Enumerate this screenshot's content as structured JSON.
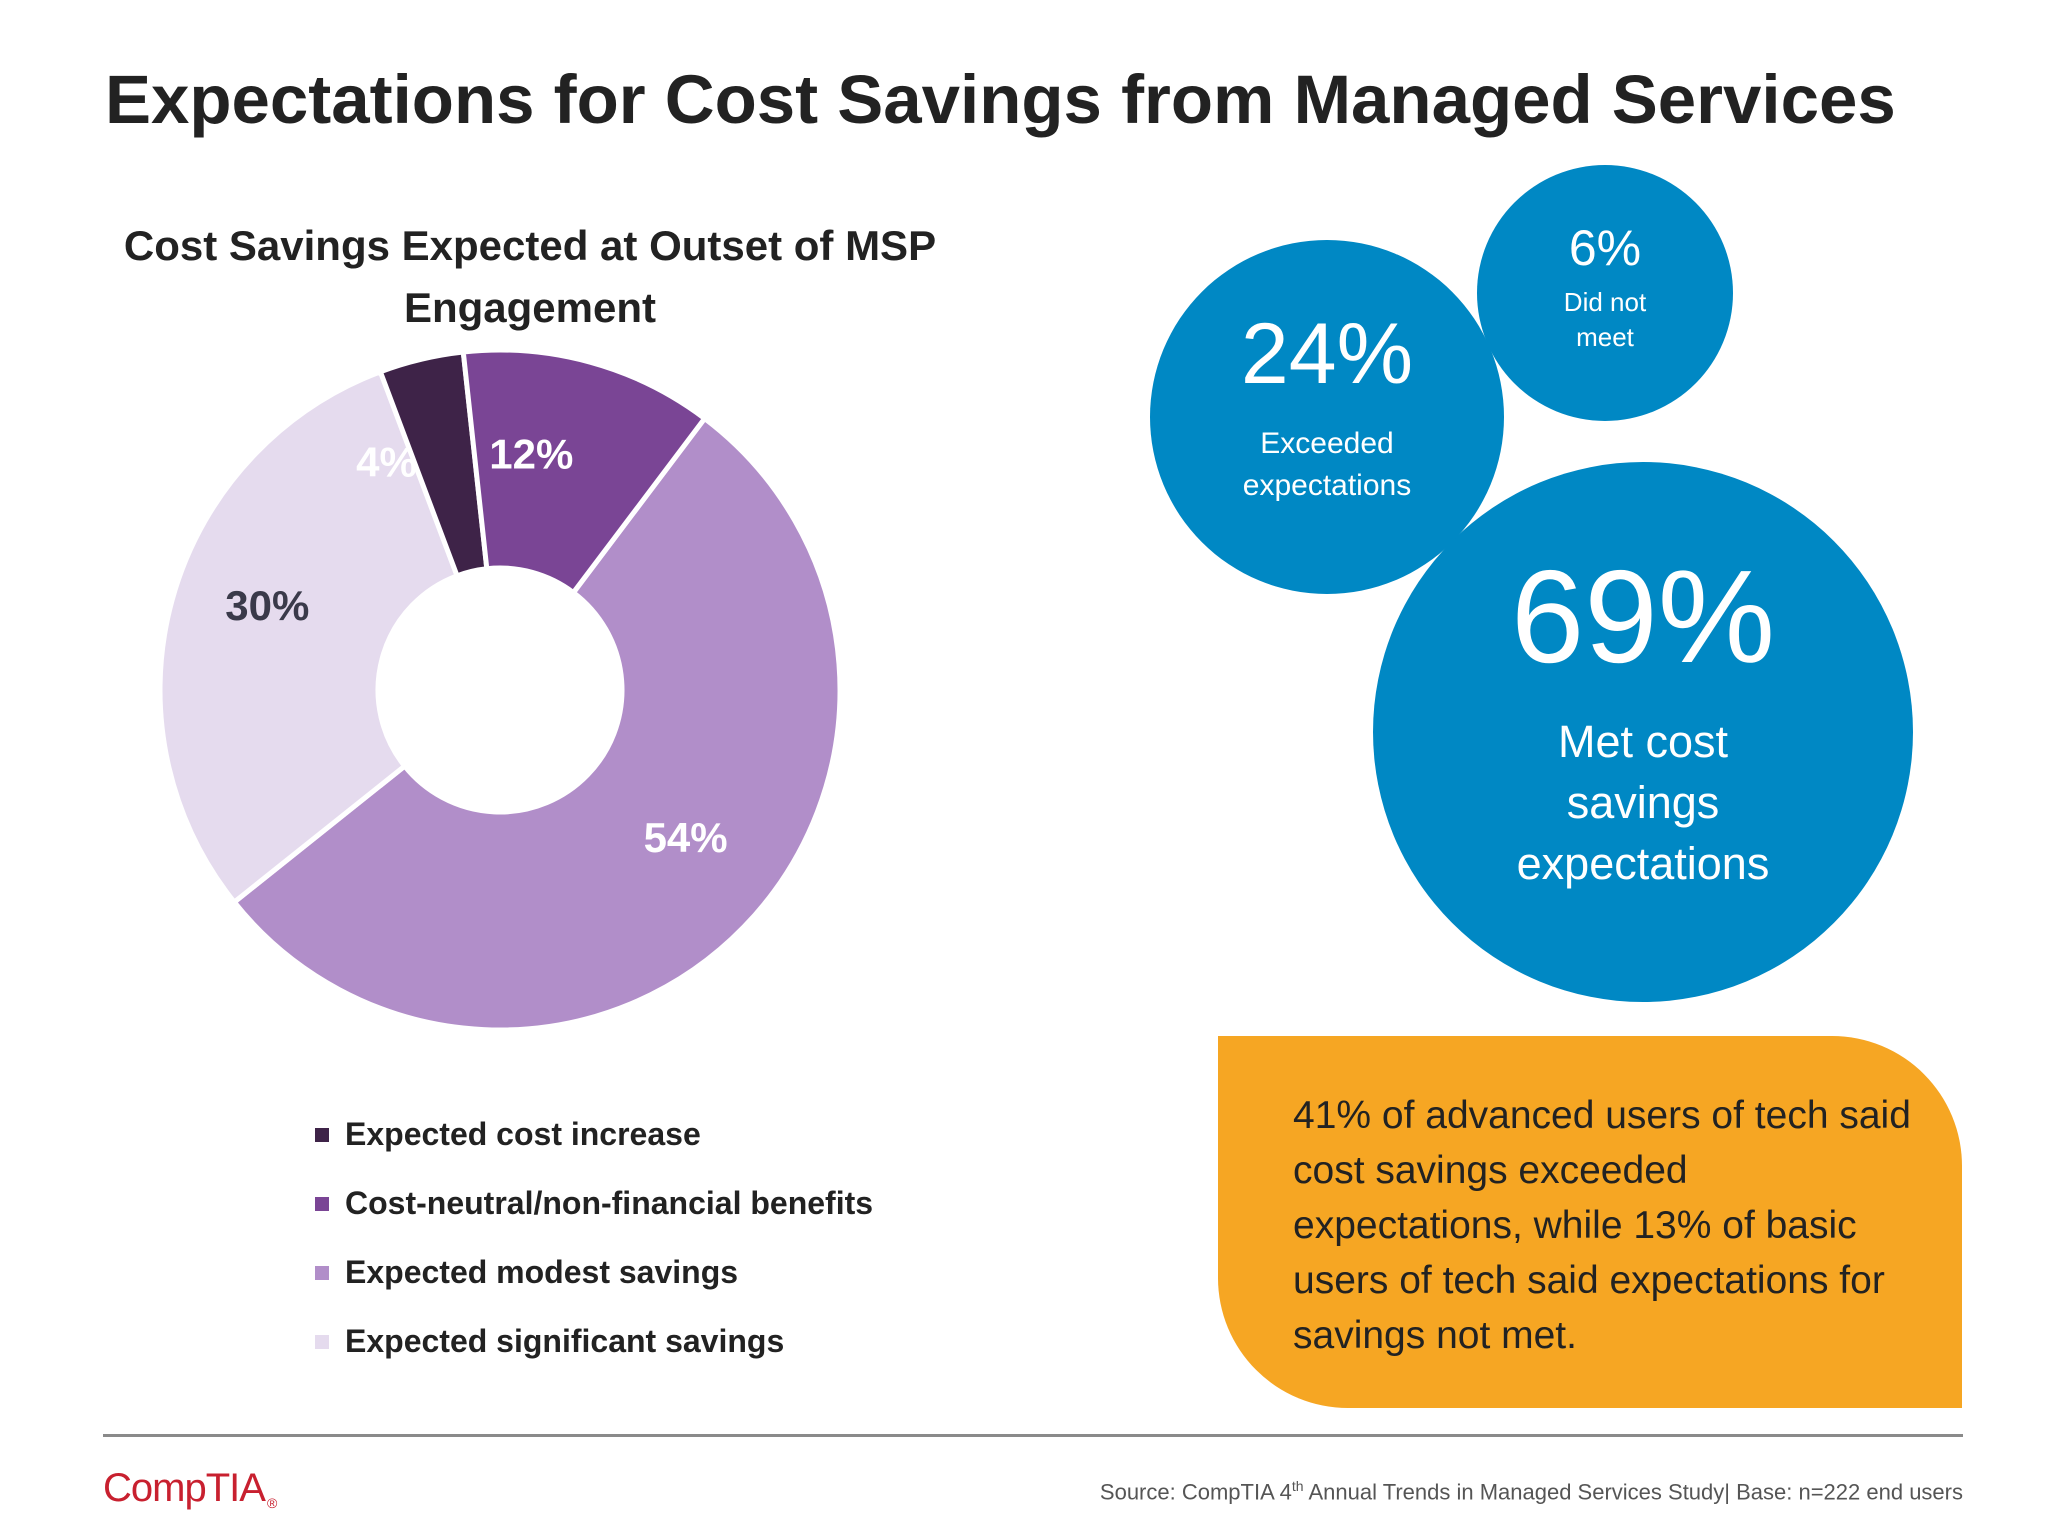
{
  "header": {
    "title": "Expectations for Cost Savings from Managed Services"
  },
  "chart_data": {
    "type": "pie",
    "title": "Cost Savings Expected at Outset of MSP Engagement",
    "unit": "%",
    "categories": [
      "Expected cost increase",
      "Cost-neutral/non-financial benefits",
      "Expected modest savings",
      "Expected significant savings"
    ],
    "values": [
      4,
      12,
      54,
      30
    ],
    "labels": [
      "4%",
      "12%",
      "54%",
      "30%"
    ],
    "colors": [
      "#3e2348",
      "#7a4595",
      "#b18ec9",
      "#e5dbee"
    ],
    "label_colors": [
      "#ffffff",
      "#ffffff",
      "#ffffff",
      "#3a3a4a"
    ],
    "legend_position": "bottom",
    "donut": true
  },
  "bubbles": {
    "met": {
      "value": "69%",
      "label": "Met cost savings expectations"
    },
    "exceeded": {
      "value": "24%",
      "label": "Exceeded expectations"
    },
    "not_met": {
      "value": "6%",
      "label": "Did not meet"
    },
    "color": "#0088c4"
  },
  "callout": {
    "text": "41% of advanced users of tech said cost savings exceeded expectations, while 13% of basic users of tech said expectations for savings not met.",
    "color": "#f6a623"
  },
  "footer": {
    "logo_text": "CompTIA",
    "source_prefix": "Source: CompTIA 4",
    "source_sup": "th",
    "source_suffix": " Annual Trends in Managed Services Study| Base: n=222 end users"
  }
}
